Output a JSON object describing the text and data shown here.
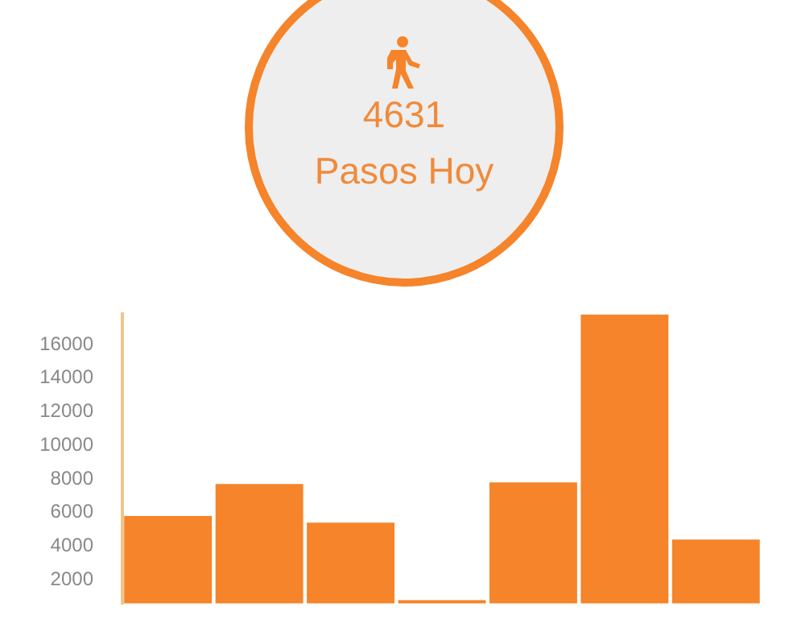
{
  "chart_data": {
    "type": "bar",
    "annotations": [
      "4631",
      "Pasos Hoy"
    ],
    "categories": [
      null,
      null,
      null,
      null,
      null,
      null,
      null
    ],
    "values": [
      5800,
      7700,
      5400,
      800,
      7800,
      17800,
      4400
    ],
    "color": "#f5842a",
    "ylim": [
      600,
      17800
    ],
    "yticks": [
      2000,
      4000,
      6000,
      8000,
      10000,
      12000,
      14000,
      16000
    ],
    "grid": false,
    "legend": false
  }
}
